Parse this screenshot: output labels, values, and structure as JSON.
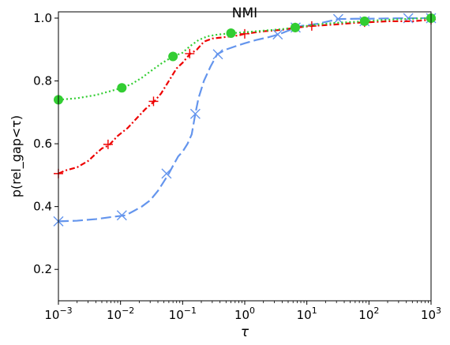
{
  "chart_data": {
    "type": "line",
    "title": "NMI",
    "xlabel": "τ",
    "ylabel": "p(rel_gap<τ)",
    "xscale": "log",
    "xlim": [
      0.001,
      1000
    ],
    "ylim": [
      0.1,
      1.02
    ],
    "x_ticks": [
      {
        "value": 0.001,
        "base": "10",
        "exp": "−3"
      },
      {
        "value": 0.01,
        "base": "10",
        "exp": "−2"
      },
      {
        "value": 0.1,
        "base": "10",
        "exp": "−1"
      },
      {
        "value": 1,
        "base": "10",
        "exp": "0"
      },
      {
        "value": 10,
        "base": "10",
        "exp": "1"
      },
      {
        "value": 100,
        "base": "10",
        "exp": "2"
      },
      {
        "value": 1000,
        "base": "10",
        "exp": "3"
      }
    ],
    "y_ticks": [
      {
        "value": 0.2,
        "label": "0.2"
      },
      {
        "value": 0.4,
        "label": "0.4"
      },
      {
        "value": 0.6,
        "label": "0.6"
      },
      {
        "value": 0.8,
        "label": "0.8"
      },
      {
        "value": 1.0,
        "label": "1.0"
      }
    ],
    "grid": false,
    "legend": "none",
    "series": [
      {
        "color": "#6495ED",
        "linestyle": "dashed",
        "marker": "x",
        "points": [
          [
            0.001,
            0.353
          ],
          [
            0.002,
            0.355
          ],
          [
            0.004,
            0.36
          ],
          [
            0.008,
            0.368
          ],
          [
            0.012,
            0.372
          ],
          [
            0.016,
            0.385
          ],
          [
            0.022,
            0.4
          ],
          [
            0.03,
            0.42
          ],
          [
            0.04,
            0.45
          ],
          [
            0.05,
            0.48
          ],
          [
            0.06,
            0.505
          ],
          [
            0.07,
            0.53
          ],
          [
            0.085,
            0.56
          ],
          [
            0.1,
            0.575
          ],
          [
            0.12,
            0.6
          ],
          [
            0.14,
            0.63
          ],
          [
            0.16,
            0.695
          ],
          [
            0.18,
            0.745
          ],
          [
            0.22,
            0.8
          ],
          [
            0.28,
            0.845
          ],
          [
            0.36,
            0.885
          ],
          [
            0.5,
            0.9
          ],
          [
            0.7,
            0.91
          ],
          [
            1.0,
            0.92
          ],
          [
            1.5,
            0.93
          ],
          [
            2.5,
            0.94
          ],
          [
            3.5,
            0.948
          ],
          [
            5,
            0.96
          ],
          [
            8,
            0.975
          ],
          [
            15,
            0.982
          ],
          [
            32,
            0.997
          ],
          [
            60,
            0.998
          ],
          [
            100,
            0.998
          ],
          [
            200,
            0.999
          ],
          [
            400,
            1.0
          ],
          [
            1000,
            1.0
          ]
        ],
        "markers": [
          [
            0.001,
            0.353
          ],
          [
            0.0105,
            0.372
          ],
          [
            0.055,
            0.505
          ],
          [
            0.16,
            0.695
          ],
          [
            0.37,
            0.885
          ],
          [
            3.4,
            0.948
          ],
          [
            6.6,
            0.97
          ],
          [
            32,
            0.997
          ],
          [
            85,
            0.99
          ],
          [
            430,
            1.0
          ],
          [
            1000,
            1.0
          ]
        ]
      },
      {
        "color": "#EE0000",
        "linestyle": "dashdot",
        "marker": "+",
        "points": [
          [
            0.001,
            0.505
          ],
          [
            0.0013,
            0.515
          ],
          [
            0.002,
            0.525
          ],
          [
            0.003,
            0.545
          ],
          [
            0.004,
            0.568
          ],
          [
            0.005,
            0.585
          ],
          [
            0.0065,
            0.595
          ],
          [
            0.009,
            0.625
          ],
          [
            0.013,
            0.65
          ],
          [
            0.018,
            0.68
          ],
          [
            0.025,
            0.71
          ],
          [
            0.035,
            0.735
          ],
          [
            0.045,
            0.76
          ],
          [
            0.06,
            0.8
          ],
          [
            0.08,
            0.84
          ],
          [
            0.1,
            0.858
          ],
          [
            0.13,
            0.885
          ],
          [
            0.17,
            0.9
          ],
          [
            0.22,
            0.925
          ],
          [
            0.3,
            0.935
          ],
          [
            0.5,
            0.94
          ],
          [
            0.8,
            0.945
          ],
          [
            1.0,
            0.95
          ],
          [
            2.0,
            0.958
          ],
          [
            4.0,
            0.963
          ],
          [
            7.0,
            0.97
          ],
          [
            12,
            0.975
          ],
          [
            30,
            0.98
          ],
          [
            60,
            0.985
          ],
          [
            100,
            0.987
          ],
          [
            200,
            0.99
          ],
          [
            500,
            0.99
          ],
          [
            1000,
            0.995
          ]
        ],
        "markers": [
          [
            0.001,
            0.505
          ],
          [
            0.0063,
            0.598
          ],
          [
            0.034,
            0.735
          ],
          [
            0.13,
            0.887
          ],
          [
            1.0,
            0.95
          ],
          [
            6.5,
            0.97
          ],
          [
            12,
            0.975
          ],
          [
            85,
            0.987
          ],
          [
            1000,
            0.995
          ]
        ]
      },
      {
        "color": "#32CD32",
        "linestyle": "dotted",
        "marker": "o",
        "points": [
          [
            0.001,
            0.74
          ],
          [
            0.002,
            0.745
          ],
          [
            0.004,
            0.755
          ],
          [
            0.007,
            0.768
          ],
          [
            0.0105,
            0.778
          ],
          [
            0.015,
            0.79
          ],
          [
            0.022,
            0.81
          ],
          [
            0.03,
            0.83
          ],
          [
            0.045,
            0.855
          ],
          [
            0.07,
            0.878
          ],
          [
            0.1,
            0.89
          ],
          [
            0.13,
            0.91
          ],
          [
            0.18,
            0.93
          ],
          [
            0.25,
            0.942
          ],
          [
            0.35,
            0.947
          ],
          [
            0.6,
            0.952
          ],
          [
            1.0,
            0.955
          ],
          [
            2.0,
            0.96
          ],
          [
            4.0,
            0.965
          ],
          [
            6.5,
            0.97
          ],
          [
            15,
            0.98
          ],
          [
            30,
            0.985
          ],
          [
            85,
            0.99
          ],
          [
            200,
            0.995
          ],
          [
            500,
            0.998
          ],
          [
            1000,
            1.0
          ]
        ],
        "markers": [
          [
            0.001,
            0.74
          ],
          [
            0.0105,
            0.778
          ],
          [
            0.07,
            0.878
          ],
          [
            0.6,
            0.952
          ],
          [
            6.5,
            0.97
          ],
          [
            85,
            0.99
          ],
          [
            1000,
            1.0
          ]
        ]
      }
    ]
  }
}
